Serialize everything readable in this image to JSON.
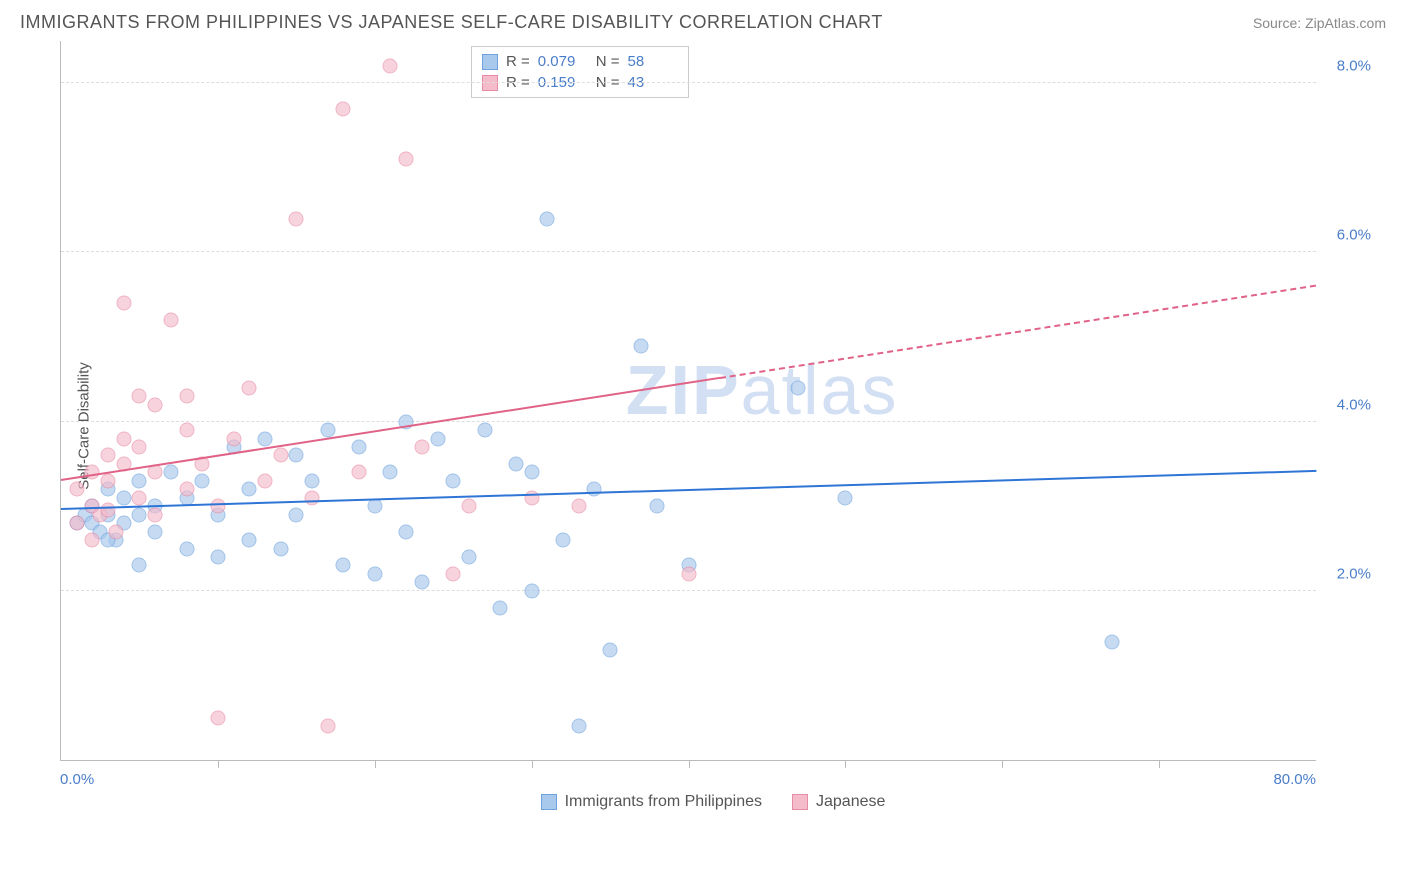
{
  "header": {
    "title": "IMMIGRANTS FROM PHILIPPINES VS JAPANESE SELF-CARE DISABILITY CORRELATION CHART",
    "source_prefix": "Source: ",
    "source_name": "ZipAtlas.com"
  },
  "ylabel": "Self-Care Disability",
  "watermark": {
    "zip": "ZIP",
    "atlas": "atlas"
  },
  "chart": {
    "type": "scatter",
    "xlim": [
      0,
      80
    ],
    "ylim": [
      0,
      8.5
    ],
    "xaxis_label_left": "0.0%",
    "xaxis_label_right": "80.0%",
    "yticks": [
      {
        "v": 2.0,
        "label": "2.0%"
      },
      {
        "v": 4.0,
        "label": "4.0%"
      },
      {
        "v": 6.0,
        "label": "6.0%"
      },
      {
        "v": 8.0,
        "label": "8.0%"
      }
    ],
    "xticks_minor": [
      10,
      20,
      30,
      40,
      50,
      60,
      70
    ],
    "background_color": "#ffffff",
    "grid_color": "#dddddd",
    "marker_radius": 7.5,
    "marker_opacity": 0.65,
    "axis_color": "#bbbbbb",
    "label_color": "#4a7dc9"
  },
  "series": [
    {
      "name": "Immigrants from Philippines",
      "color_fill": "#a8c8ec",
      "color_border": "#6fa3dd",
      "r_value": "0.079",
      "n_value": "58",
      "trend": {
        "x1": 0,
        "y1": 2.95,
        "x2": 80,
        "y2": 3.4,
        "solid_until_x": 80,
        "color": "#2e75d6"
      },
      "points": [
        [
          1,
          2.8
        ],
        [
          1.5,
          2.9
        ],
        [
          2,
          2.8
        ],
        [
          2,
          3.0
        ],
        [
          2.5,
          2.7
        ],
        [
          3,
          2.9
        ],
        [
          3,
          3.2
        ],
        [
          3.5,
          2.6
        ],
        [
          4,
          2.8
        ],
        [
          4,
          3.1
        ],
        [
          5,
          2.9
        ],
        [
          5,
          2.3
        ],
        [
          6,
          3.0
        ],
        [
          6,
          2.7
        ],
        [
          7,
          3.4
        ],
        [
          8,
          2.5
        ],
        [
          8,
          3.1
        ],
        [
          9,
          3.3
        ],
        [
          10,
          2.4
        ],
        [
          10,
          2.9
        ],
        [
          11,
          3.7
        ],
        [
          12,
          2.6
        ],
        [
          12,
          3.2
        ],
        [
          13,
          3.8
        ],
        [
          14,
          2.5
        ],
        [
          15,
          3.6
        ],
        [
          15,
          2.9
        ],
        [
          16,
          3.3
        ],
        [
          17,
          3.9
        ],
        [
          18,
          2.3
        ],
        [
          19,
          3.7
        ],
        [
          20,
          3.0
        ],
        [
          20,
          2.2
        ],
        [
          21,
          3.4
        ],
        [
          22,
          4.0
        ],
        [
          22,
          2.7
        ],
        [
          23,
          2.1
        ],
        [
          24,
          3.8
        ],
        [
          25,
          3.3
        ],
        [
          26,
          2.4
        ],
        [
          27,
          3.9
        ],
        [
          28,
          1.8
        ],
        [
          29,
          3.5
        ],
        [
          30,
          2.0
        ],
        [
          30,
          3.4
        ],
        [
          31,
          6.4
        ],
        [
          32,
          2.6
        ],
        [
          33,
          0.4
        ],
        [
          34,
          3.2
        ],
        [
          35,
          1.3
        ],
        [
          37,
          4.9
        ],
        [
          38,
          3.0
        ],
        [
          40,
          2.3
        ],
        [
          47,
          4.4
        ],
        [
          50,
          3.1
        ],
        [
          67,
          1.4
        ],
        [
          3,
          2.6
        ],
        [
          5,
          3.3
        ]
      ]
    },
    {
      "name": "Japanese",
      "color_fill": "#f4bccb",
      "color_border": "#e88ba5",
      "r_value": "0.159",
      "n_value": "43",
      "trend": {
        "x1": 0,
        "y1": 3.3,
        "x2": 80,
        "y2": 5.6,
        "solid_until_x": 42,
        "color": "#e06287"
      },
      "points": [
        [
          1,
          2.8
        ],
        [
          1,
          3.2
        ],
        [
          2,
          3.0
        ],
        [
          2,
          3.4
        ],
        [
          2.5,
          2.9
        ],
        [
          3,
          3.3
        ],
        [
          3,
          3.6
        ],
        [
          3.5,
          2.7
        ],
        [
          4,
          3.5
        ],
        [
          4,
          3.8
        ],
        [
          4,
          5.4
        ],
        [
          5,
          3.1
        ],
        [
          5,
          3.7
        ],
        [
          5,
          4.3
        ],
        [
          6,
          3.4
        ],
        [
          6,
          4.2
        ],
        [
          7,
          5.2
        ],
        [
          8,
          3.2
        ],
        [
          8,
          3.9
        ],
        [
          8,
          4.3
        ],
        [
          9,
          3.5
        ],
        [
          10,
          3.0
        ],
        [
          10,
          0.5
        ],
        [
          11,
          3.8
        ],
        [
          12,
          4.4
        ],
        [
          13,
          3.3
        ],
        [
          14,
          3.6
        ],
        [
          15,
          6.4
        ],
        [
          16,
          3.1
        ],
        [
          17,
          0.4
        ],
        [
          18,
          7.7
        ],
        [
          19,
          3.4
        ],
        [
          21,
          8.2
        ],
        [
          22,
          7.1
        ],
        [
          23,
          3.7
        ],
        [
          25,
          2.2
        ],
        [
          26,
          3.0
        ],
        [
          30,
          3.1
        ],
        [
          33,
          3.0
        ],
        [
          40,
          2.2
        ],
        [
          2,
          2.6
        ],
        [
          6,
          2.9
        ],
        [
          3,
          2.95
        ]
      ]
    }
  ],
  "stats_legend": {
    "r_label": "R =",
    "n_label": "N ="
  }
}
